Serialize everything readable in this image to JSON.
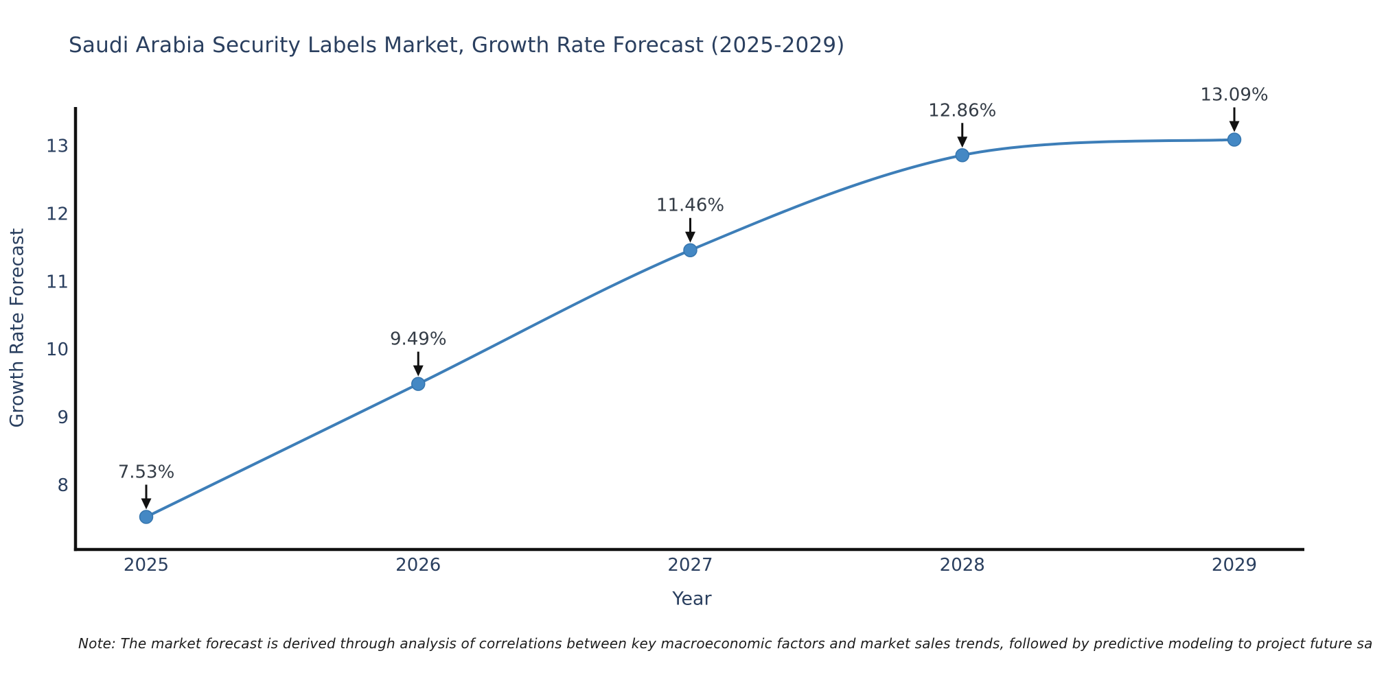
{
  "title": "Saudi Arabia Security Labels Market, Growth Rate Forecast (2025-2029)",
  "note": "Note: The market forecast is derived through analysis of correlations between key macroeconomic factors and market sales trends, followed by predictive modeling to project future sales",
  "chart_data": {
    "type": "line",
    "title": "Saudi Arabia Security Labels Market, Growth Rate Forecast (2025-2029)",
    "xlabel": "Year",
    "ylabel": "Growth Rate Forecast",
    "categories": [
      "2025",
      "2026",
      "2027",
      "2028",
      "2029"
    ],
    "values": [
      7.53,
      9.49,
      11.46,
      12.86,
      13.09
    ],
    "point_labels": [
      "7.53%",
      "9.49%",
      "11.46%",
      "12.86%",
      "13.09%"
    ],
    "y_ticks": [
      "8",
      "9",
      "10",
      "11",
      "12",
      "13"
    ],
    "y_tick_values": [
      8,
      9,
      10,
      11,
      12,
      13
    ],
    "ylim": [
      7.05,
      13.55
    ],
    "grid": false,
    "legend_position": "none",
    "line_shape": "spline",
    "marker": "circle",
    "annotation_arrows": true,
    "colors": {
      "line": "#3d7eb8",
      "marker": "#4488c4",
      "marker_edge": "#3575ae",
      "arrow": "#111111",
      "spine": "#111111",
      "title_text": "#2a3f5f",
      "axis_text": "#2a3f5f",
      "tick_text": "#2a3f5f",
      "annotation_text": "#343c46",
      "note_text": "#1c1c1c",
      "background": "#ffffff"
    }
  }
}
